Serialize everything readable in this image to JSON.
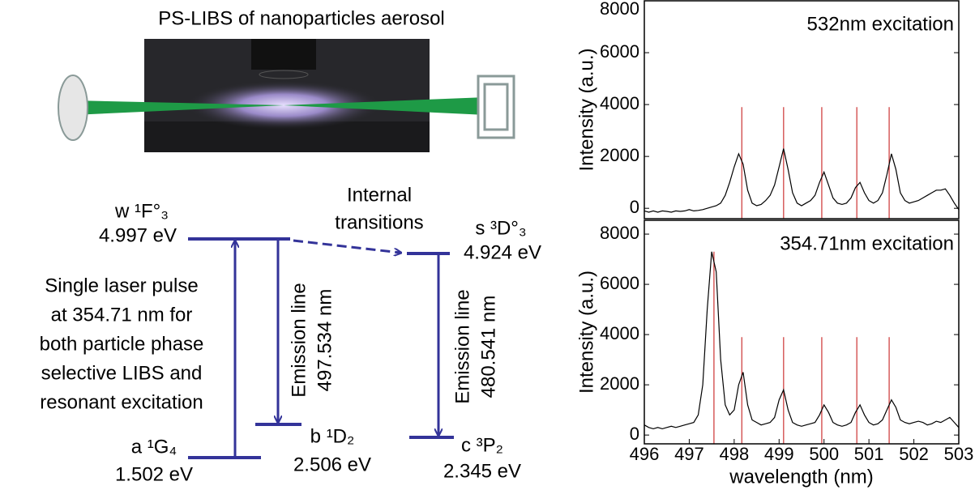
{
  "diagram": {
    "title": "PS-LIBS of nanoparticles aerosol",
    "levels": [
      {
        "name": "w ¹F°₃",
        "energy": "4.997 eV"
      },
      {
        "name": "a ¹G₄",
        "energy": "1.502 eV"
      },
      {
        "name": "b ¹D₂",
        "energy": "2.506 eV"
      },
      {
        "name": "s ³D°₃",
        "energy": "4.924 eV"
      },
      {
        "name": "c ³P₂",
        "energy": "2.345 eV"
      }
    ],
    "internal": [
      "Internal",
      "transitions"
    ],
    "emission_1": [
      "Emission line",
      "497.534 nm"
    ],
    "emission_2": [
      "Emission line",
      "480.541 nm"
    ],
    "excitation_note": [
      "Single laser pulse",
      "at 354.71 nm for",
      "both particle phase",
      "selective  LIBS and",
      "resonant excitation"
    ]
  },
  "chart_data": [
    {
      "type": "line",
      "annotation": "532nm excitation",
      "ylabel": "Intensity (a.u.)",
      "color": "#000000",
      "reference_color": "#cc3333",
      "xlim": [
        496,
        503
      ],
      "ylim": [
        -400,
        8000
      ],
      "yticks": [
        0,
        2000,
        4000,
        6000,
        8000
      ],
      "x": [
        496.0,
        496.1,
        496.2,
        496.3,
        496.4,
        496.5,
        496.6,
        496.7,
        496.8,
        496.9,
        497.0,
        497.1,
        497.2,
        497.3,
        497.4,
        497.5,
        497.6,
        497.7,
        497.8,
        497.9,
        498.0,
        498.1,
        498.2,
        498.3,
        498.4,
        498.5,
        498.6,
        498.7,
        498.8,
        498.9,
        499.0,
        499.1,
        499.2,
        499.3,
        499.4,
        499.5,
        499.6,
        499.7,
        499.8,
        499.9,
        500.0,
        500.1,
        500.2,
        500.3,
        500.4,
        500.5,
        500.6,
        500.7,
        500.8,
        500.9,
        501.0,
        501.1,
        501.2,
        501.3,
        501.4,
        501.5,
        501.6,
        501.7,
        501.8,
        501.9,
        502.0,
        502.1,
        502.2,
        502.3,
        502.4,
        502.5,
        502.6,
        502.7,
        502.8,
        502.9,
        503.0
      ],
      "values": [
        -100,
        -150,
        -100,
        -150,
        -100,
        -120,
        -150,
        -100,
        -120,
        -100,
        -50,
        -100,
        -80,
        -50,
        0,
        50,
        100,
        200,
        500,
        1000,
        1600,
        2100,
        1700,
        700,
        200,
        100,
        150,
        300,
        500,
        900,
        1600,
        2300,
        1500,
        600,
        200,
        100,
        200,
        300,
        500,
        1000,
        1400,
        900,
        400,
        200,
        150,
        200,
        400,
        800,
        1000,
        600,
        300,
        200,
        300,
        600,
        1300,
        2100,
        1500,
        600,
        300,
        200,
        250,
        300,
        400,
        500,
        600,
        700,
        700,
        750,
        500,
        200,
        -50
      ],
      "reference_lines": [
        {
          "x": 498.17,
          "y": 3900
        },
        {
          "x": 499.1,
          "y": 3900
        },
        {
          "x": 499.95,
          "y": 3900
        },
        {
          "x": 500.73,
          "y": 3900
        },
        {
          "x": 501.45,
          "y": 3900
        }
      ]
    },
    {
      "type": "line",
      "annotation": "354.71nm excitation",
      "ylabel": "Intensity (a.u.)",
      "xlabel": "wavelength (nm)",
      "color": "#000000",
      "reference_color": "#cc3333",
      "xlim": [
        496,
        503
      ],
      "xticks": [
        496,
        497,
        498,
        499,
        500,
        501,
        502,
        503
      ],
      "ylim": [
        -350,
        8550
      ],
      "yticks": [
        0,
        2000,
        4000,
        6000,
        8000
      ],
      "x": [
        496.0,
        496.1,
        496.2,
        496.3,
        496.4,
        496.5,
        496.6,
        496.7,
        496.8,
        496.9,
        497.0,
        497.1,
        497.2,
        497.3,
        497.4,
        497.5,
        497.6,
        497.7,
        497.8,
        497.9,
        498.0,
        498.1,
        498.2,
        498.3,
        498.4,
        498.5,
        498.6,
        498.7,
        498.8,
        498.9,
        499.0,
        499.1,
        499.2,
        499.3,
        499.4,
        499.5,
        499.6,
        499.7,
        499.8,
        499.9,
        500.0,
        500.1,
        500.2,
        500.3,
        500.4,
        500.5,
        500.6,
        500.7,
        500.8,
        500.9,
        501.0,
        501.1,
        501.2,
        501.3,
        501.4,
        501.5,
        501.6,
        501.7,
        501.8,
        501.9,
        502.0,
        502.1,
        502.2,
        502.3,
        502.4,
        502.5,
        502.6,
        502.7,
        502.8,
        502.9,
        503.0
      ],
      "values": [
        400,
        300,
        250,
        300,
        250,
        300,
        350,
        300,
        350,
        400,
        450,
        500,
        800,
        2000,
        5000,
        7300,
        6500,
        3000,
        1200,
        800,
        1000,
        2000,
        2500,
        1200,
        600,
        500,
        400,
        450,
        500,
        700,
        1400,
        1800,
        1000,
        500,
        400,
        350,
        400,
        450,
        500,
        800,
        1200,
        900,
        500,
        400,
        350,
        400,
        500,
        900,
        1200,
        800,
        500,
        400,
        450,
        600,
        1000,
        1400,
        1100,
        600,
        500,
        450,
        500,
        550,
        500,
        400,
        450,
        550,
        500,
        600,
        700,
        500,
        300
      ],
      "reference_lines": [
        {
          "x": 497.55,
          "y": 7300
        },
        {
          "x": 498.17,
          "y": 3900
        },
        {
          "x": 499.1,
          "y": 3900
        },
        {
          "x": 499.95,
          "y": 3900
        },
        {
          "x": 500.73,
          "y": 3900
        },
        {
          "x": 501.45,
          "y": 3900
        }
      ]
    }
  ]
}
